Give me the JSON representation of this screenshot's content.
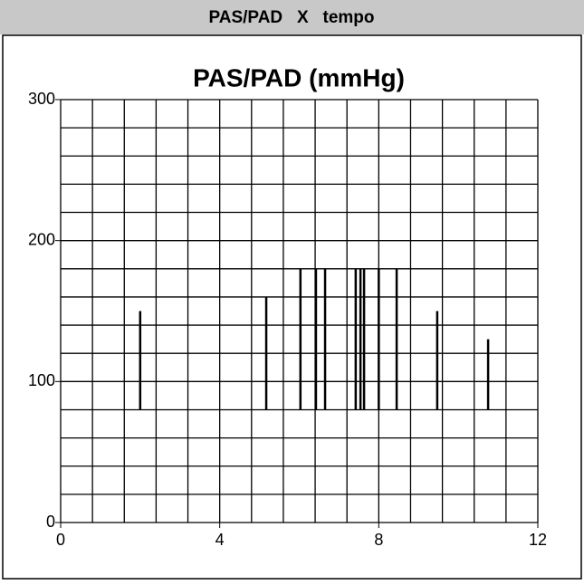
{
  "header": {
    "title": "PAS/PAD   X   tempo"
  },
  "chart_data": {
    "type": "range",
    "title": "PAS/PAD (mmHg)",
    "x": [
      2.0,
      5.17,
      6.03,
      6.42,
      6.65,
      7.42,
      7.54,
      7.63,
      8.0,
      8.45,
      9.47,
      10.75
    ],
    "high": [
      150,
      160,
      180,
      180,
      180,
      180,
      180,
      180,
      180,
      180,
      150,
      130
    ],
    "low": [
      80,
      80,
      80,
      80,
      80,
      80,
      80,
      80,
      80,
      80,
      80,
      80
    ],
    "color": "#000000",
    "xlim": [
      0,
      12
    ],
    "xticks": [
      0,
      4,
      8,
      12
    ],
    "ylim": [
      0,
      300
    ],
    "yticks": [
      0,
      100,
      200,
      300
    ],
    "xgrid": [
      0,
      0.8,
      1.6,
      2.4,
      3.2,
      4.0,
      4.8,
      5.6,
      6.4,
      7.2,
      8.0,
      8.8,
      9.6,
      10.4,
      11.2,
      12
    ],
    "ygrid": [
      0,
      20,
      40,
      60,
      80,
      100,
      120,
      140,
      160,
      180,
      200,
      220,
      240,
      260,
      280,
      300
    ],
    "grid": true
  }
}
